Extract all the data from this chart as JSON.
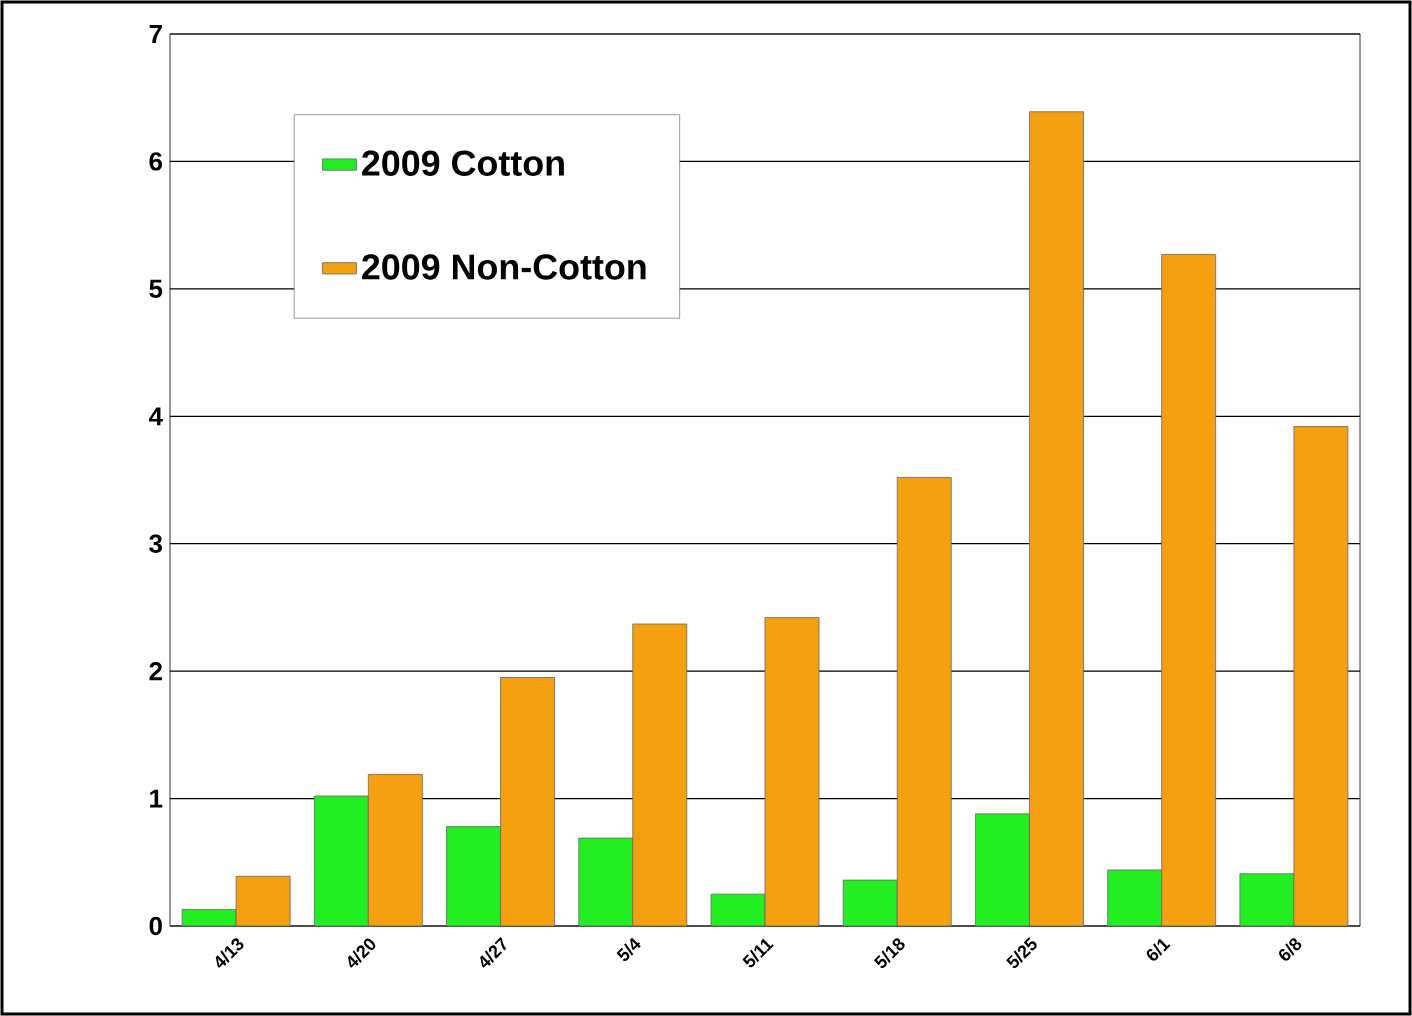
{
  "chart_data": {
    "type": "bar",
    "categories": [
      "4/13",
      "4/20",
      "4/27",
      "5/4",
      "5/11",
      "5/18",
      "5/25",
      "6/1",
      "6/8"
    ],
    "series": [
      {
        "name": "2009 Cotton",
        "color": "#22ee22",
        "values": [
          0.13,
          1.02,
          0.78,
          0.69,
          0.25,
          0.36,
          0.88,
          0.44,
          0.41
        ]
      },
      {
        "name": "2009 Non-Cotton",
        "color": "#f5a010",
        "values": [
          0.39,
          1.19,
          1.95,
          2.37,
          2.42,
          3.52,
          6.39,
          5.27,
          3.92
        ]
      }
    ],
    "ylim": [
      0,
      7
    ],
    "yticks": [
      0,
      1,
      2,
      3,
      4,
      5,
      6,
      7
    ],
    "grid": "y",
    "legend": "top left"
  }
}
